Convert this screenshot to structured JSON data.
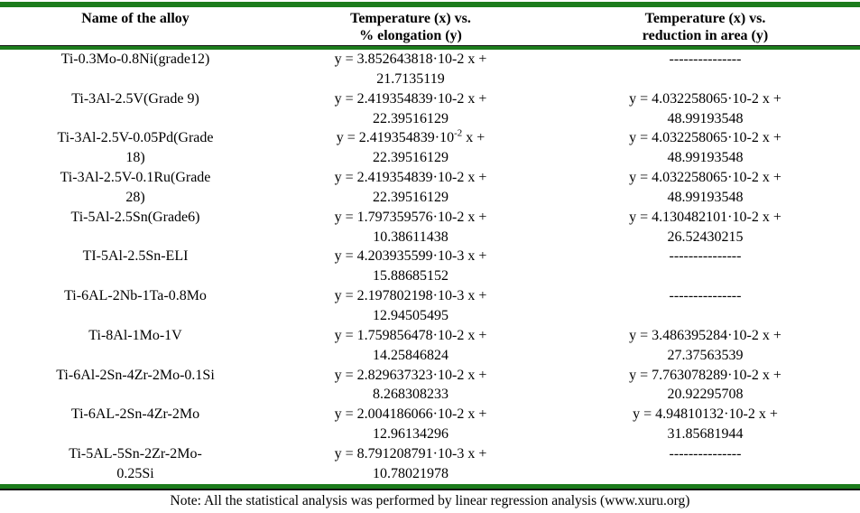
{
  "colors": {
    "border_green": "#1c7c1c",
    "text": "#000000",
    "rule_black": "#151515"
  },
  "table": {
    "headers": {
      "col1": "Name of the alloy",
      "col2_l1": "Temperature (x) vs.",
      "col2_l2": "% elongation (y)",
      "col3_l1": "Temperature (x) vs.",
      "col3_l2": "reduction in area (y)"
    },
    "rows": [
      {
        "name_l1": "Ti-0.3Mo-0.8Ni(grade12)",
        "name_l2": "",
        "elong": {
          "l1a": "y = 3.852643818·10-2",
          "sup": "",
          "l1b": " x +",
          "l2": "21.7135119"
        },
        "area": {
          "l1a": "---------------",
          "sup": "",
          "l1b": "",
          "l2": ""
        }
      },
      {
        "name_l1": "Ti-3Al-2.5V(Grade 9)",
        "name_l2": "",
        "elong": {
          "l1a": "y = 2.419354839·10-2",
          "sup": "",
          "l1b": " x +",
          "l2": "22.39516129"
        },
        "area": {
          "l1a": "y = 4.032258065·10-2",
          "sup": "",
          "l1b": " x +",
          "l2": "48.99193548"
        }
      },
      {
        "name_l1": "Ti-3Al-2.5V-0.05Pd(Grade",
        "name_l2": "18)",
        "elong": {
          "l1a": "y = 2.419354839·10",
          "sup": "-2",
          "l1b": " x +",
          "l2": "22.39516129"
        },
        "area": {
          "l1a": "y = 4.032258065·10-2",
          "sup": "",
          "l1b": " x +",
          "l2": "48.99193548"
        }
      },
      {
        "name_l1": "Ti-3Al-2.5V-0.1Ru(Grade",
        "name_l2": "28)",
        "elong": {
          "l1a": "y = 2.419354839·10-2",
          "sup": "",
          "l1b": " x +",
          "l2": "22.39516129"
        },
        "area": {
          "l1a": "y = 4.032258065·10-2",
          "sup": "",
          "l1b": " x +",
          "l2": "48.99193548"
        }
      },
      {
        "name_l1": "Ti-5Al-2.5Sn(Grade6)",
        "name_l2": "",
        "elong": {
          "l1a": "y = 1.797359576·10-2",
          "sup": "",
          "l1b": " x +",
          "l2": "10.38611438"
        },
        "area": {
          "l1a": "y = 4.130482101·10-2",
          "sup": "",
          "l1b": " x +",
          "l2": "26.52430215"
        }
      },
      {
        "name_l1": "TI-5Al-2.5Sn-ELI",
        "name_l2": "",
        "elong": {
          "l1a": "y = 4.203935599·10-3",
          "sup": "",
          "l1b": " x +",
          "l2": "15.88685152"
        },
        "area": {
          "l1a": "---------------",
          "sup": "",
          "l1b": "",
          "l2": ""
        }
      },
      {
        "name_l1": "Ti-6AL-2Nb-1Ta-0.8Mo",
        "name_l2": "",
        "elong": {
          "l1a": "y = 2.197802198·10-3",
          "sup": "",
          "l1b": " x +",
          "l2": "12.94505495"
        },
        "area": {
          "l1a": "---------------",
          "sup": "",
          "l1b": "",
          "l2": ""
        }
      },
      {
        "name_l1": "Ti-8Al-1Mo-1V",
        "name_l2": "",
        "elong": {
          "l1a": "y = 1.759856478·10-2",
          "sup": "",
          "l1b": " x +",
          "l2": "14.25846824"
        },
        "area": {
          "l1a": "y = 3.486395284·10-2",
          "sup": "",
          "l1b": " x +",
          "l2": "27.37563539"
        }
      },
      {
        "name_l1": "Ti-6Al-2Sn-4Zr-2Mo-0.1Si",
        "name_l2": "",
        "elong": {
          "l1a": "y = 2.829637323·10-2",
          "sup": "",
          "l1b": " x +",
          "l2": "8.268308233"
        },
        "area": {
          "l1a": "y = 7.763078289·10-2",
          "sup": "",
          "l1b": " x +",
          "l2": "20.92295708"
        }
      },
      {
        "name_l1": "Ti-6AL-2Sn-4Zr-2Mo",
        "name_l2": "",
        "elong": {
          "l1a": "y = 2.004186066·10-2",
          "sup": "",
          "l1b": " x +",
          "l2": "12.96134296"
        },
        "area": {
          "l1a": "y = 4.94810132·10-2",
          "sup": "",
          "l1b": " x +",
          "l2": "31.85681944"
        }
      },
      {
        "name_l1": "Ti-5AL-5Sn-2Zr-2Mo-",
        "name_l2": "0.25Si",
        "elong": {
          "l1a": "y = 8.791208791·10-3",
          "sup": "",
          "l1b": " x +",
          "l2": "10.78021978"
        },
        "area": {
          "l1a": "---------------",
          "sup": "",
          "l1b": "",
          "l2": ""
        }
      }
    ],
    "note": "Note: All the statistical analysis was performed by linear regression analysis (www.xuru.org)"
  }
}
